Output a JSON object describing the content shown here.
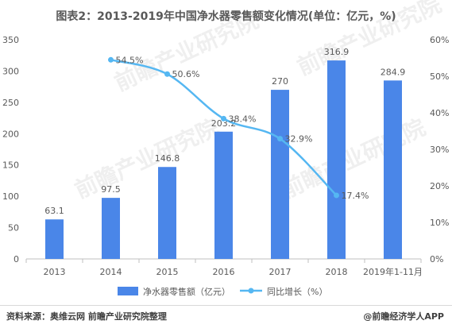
{
  "title": "图表2：2013-2019年中国净水器零售额变化情况(单位：亿元，%)",
  "footer": {
    "source": "资料来源：奥维云网 前瞻产业研究院整理",
    "brand": "@前瞻经济学人APP"
  },
  "watermark": "前瞻产业研究院",
  "colors": {
    "bar": "#4a86e8",
    "line": "#55b7f2",
    "axis": "#bfbfbf",
    "text": "#595959"
  },
  "chart_data": {
    "type": "bar",
    "categories": [
      "2013",
      "2014",
      "2015",
      "2016",
      "2017",
      "2018",
      "2019年1-11月"
    ],
    "series": [
      {
        "name": "净水器零售额（亿元）",
        "type": "bar",
        "axis": "left",
        "values": [
          63.1,
          97.5,
          146.8,
          203.2,
          270,
          316.9,
          284.9
        ],
        "labels": [
          "63.1",
          "97.5",
          "146.8",
          "203.2",
          "270",
          "316.9",
          "284.9"
        ]
      },
      {
        "name": "同比增长（%）",
        "type": "line",
        "axis": "right",
        "values": [
          null,
          54.5,
          50.6,
          38.4,
          32.9,
          17.4,
          null
        ],
        "labels": [
          "",
          "54.5%",
          "50.6%",
          "38.4%",
          "32.9%",
          "17.4%",
          ""
        ]
      }
    ],
    "y_left": {
      "min": 0,
      "max": 350,
      "ticks": [
        "0",
        "50",
        "100",
        "150",
        "200",
        "250",
        "300",
        "350"
      ]
    },
    "y_right": {
      "min": 0,
      "max": 60,
      "ticks": [
        "0%",
        "10%",
        "20%",
        "30%",
        "40%",
        "50%",
        "60%"
      ]
    },
    "grid": false,
    "legend": "bottom"
  }
}
